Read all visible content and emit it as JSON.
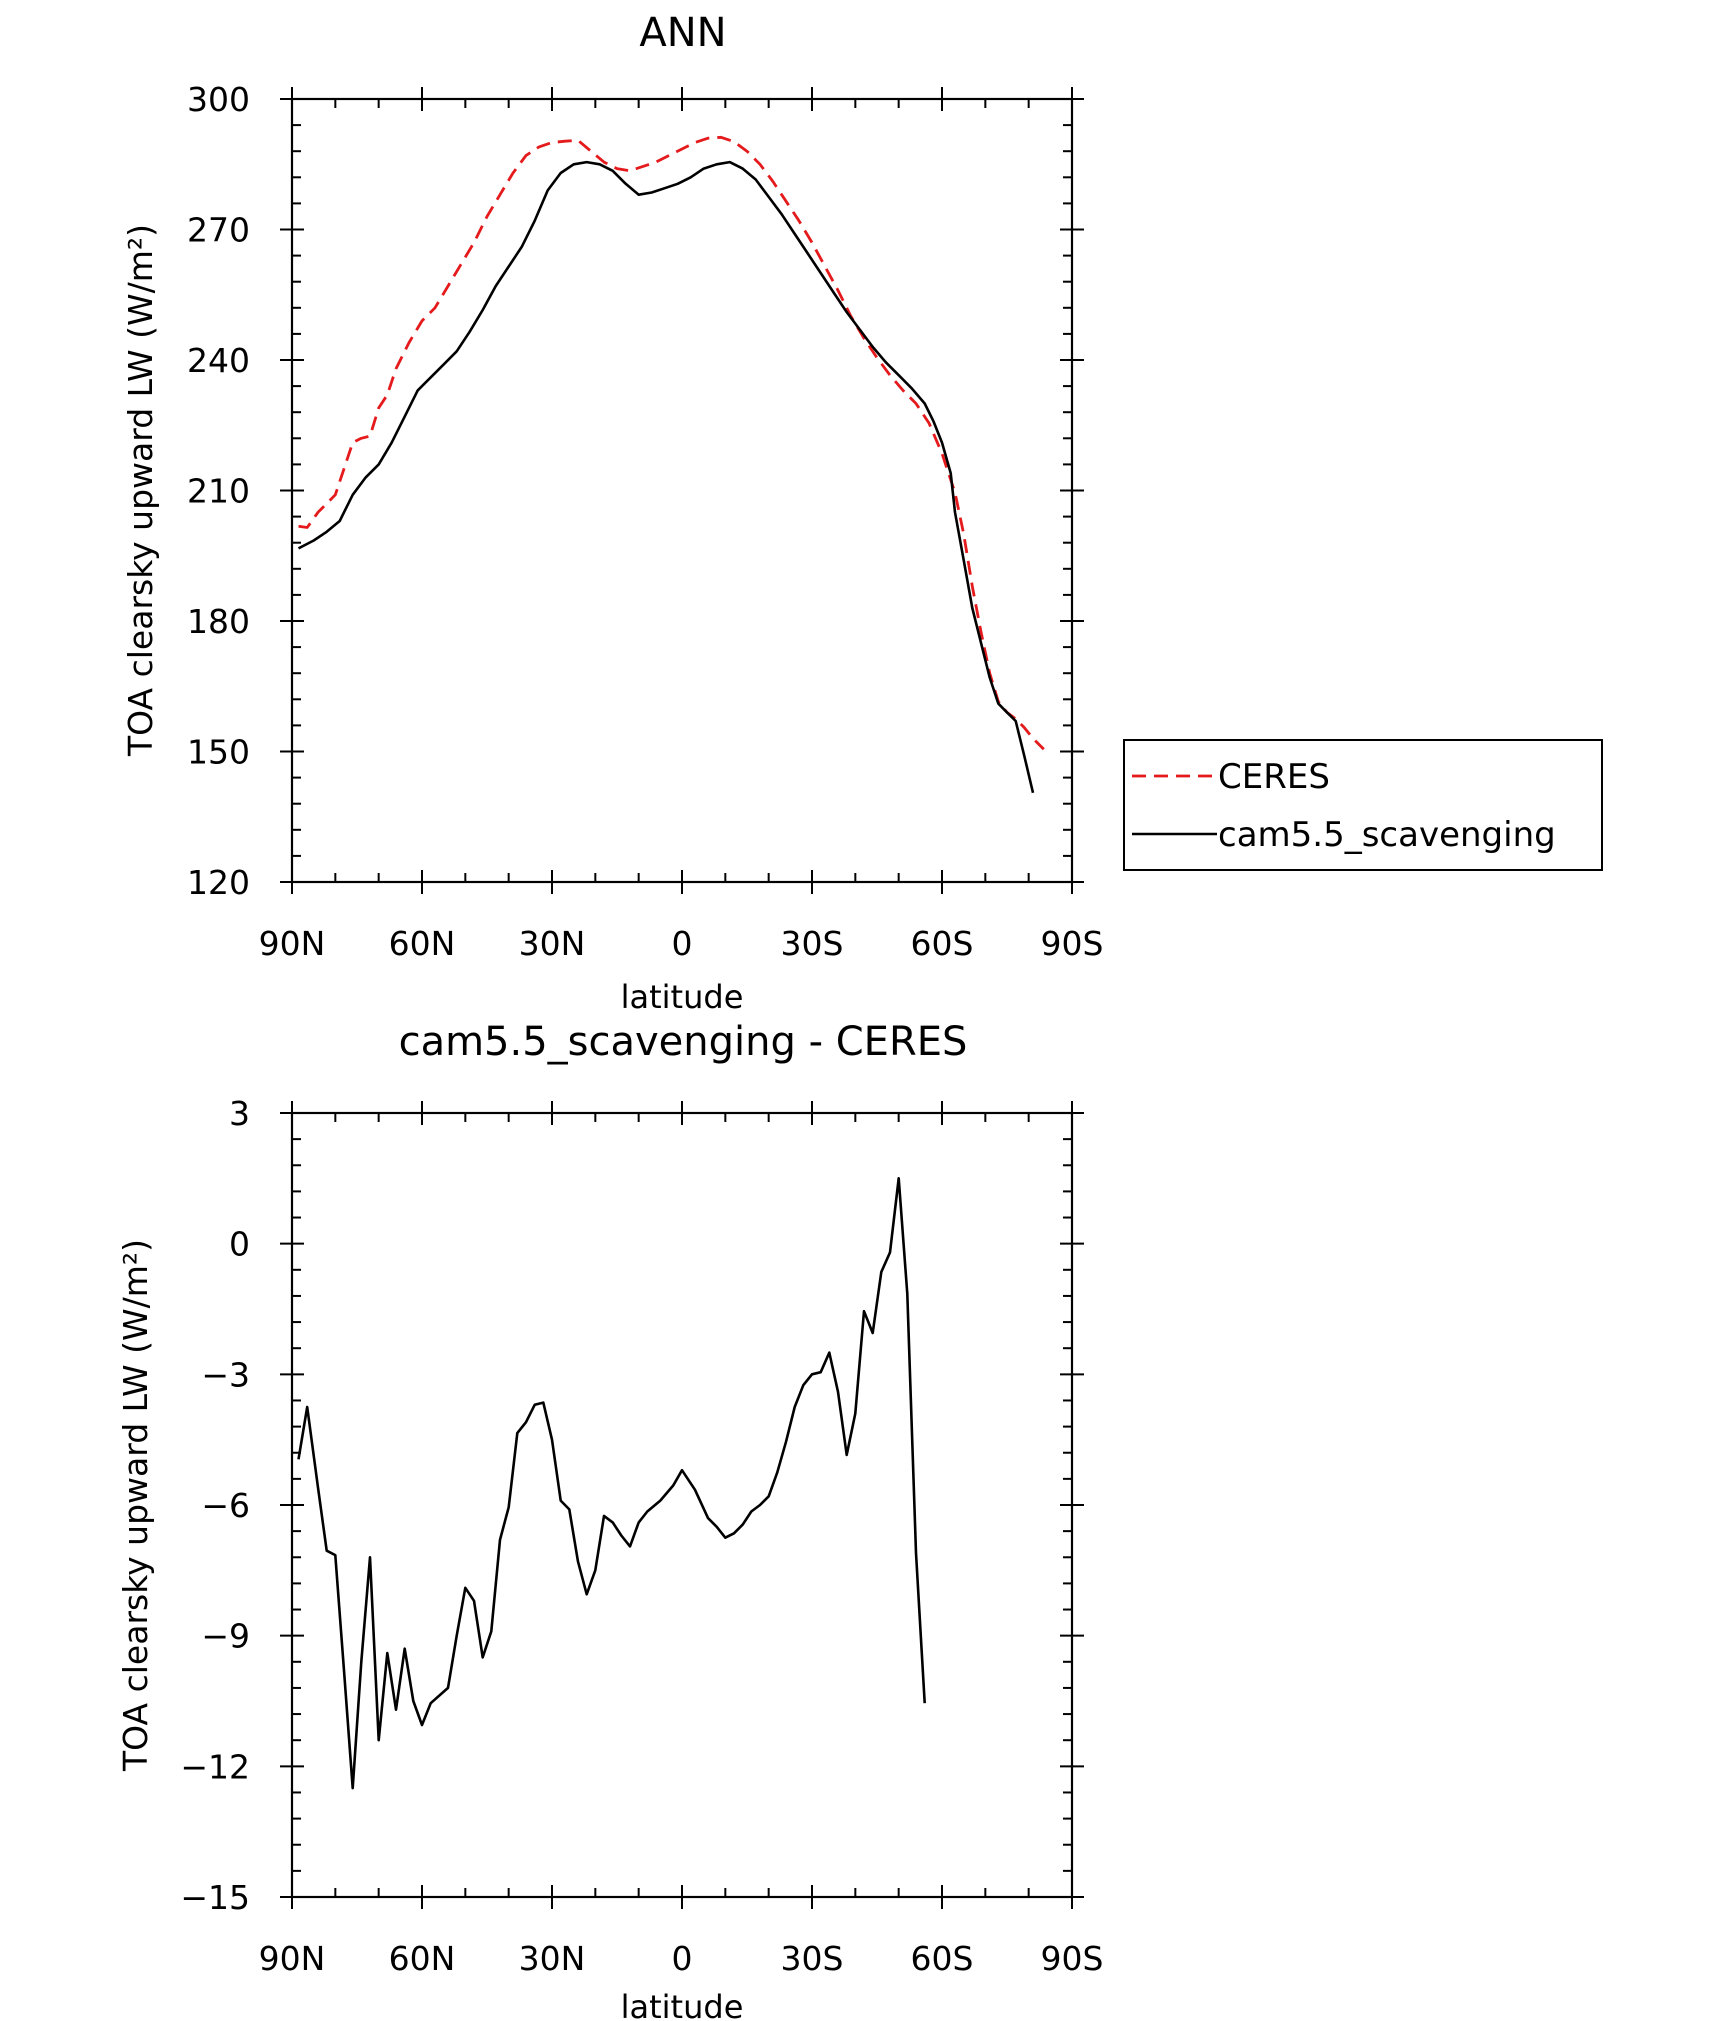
{
  "chart_data": [
    {
      "type": "line",
      "title": "ANN",
      "xlabel": "latitude",
      "ylabel": "TOA clearsky upward LW (W/m²)",
      "xlim": [
        90,
        -90
      ],
      "ylim": [
        120,
        300
      ],
      "xticks": [
        90,
        60,
        30,
        0,
        -30,
        -60,
        -90
      ],
      "xtick_labels": [
        "90N",
        "60N",
        "30N",
        "0",
        "30S",
        "60S",
        "90S"
      ],
      "yticks": [
        120,
        150,
        180,
        210,
        240,
        270,
        300
      ],
      "ytick_labels": [
        "120",
        "150",
        "180",
        "210",
        "240",
        "270",
        "300"
      ],
      "legend_position": "right",
      "series": [
        {
          "name": "CERES",
          "color": "#e41a1c",
          "dash": true,
          "points": [
            [
              88.5,
              201.8
            ],
            [
              86.5,
              201.5
            ],
            [
              84,
              205
            ],
            [
              82,
              207
            ],
            [
              80,
              209
            ],
            [
              78,
              215
            ],
            [
              76,
              221
            ],
            [
              74,
              222
            ],
            [
              72,
              222.5
            ],
            [
              70,
              229
            ],
            [
              68,
              232
            ],
            [
              66,
              238
            ],
            [
              63,
              244
            ],
            [
              60,
              249
            ],
            [
              57,
              252
            ],
            [
              54,
              257
            ],
            [
              51,
              262
            ],
            [
              48,
              267
            ],
            [
              45,
              273
            ],
            [
              42,
              278
            ],
            [
              39,
              283
            ],
            [
              36,
              287
            ],
            [
              33,
              289
            ],
            [
              30,
              290
            ],
            [
              27,
              290.3
            ],
            [
              24,
              290.5
            ],
            [
              21,
              288
            ],
            [
              18,
              285.5
            ],
            [
              15,
              284
            ],
            [
              12,
              283.5
            ],
            [
              9,
              284.5
            ],
            [
              6,
              285.5
            ],
            [
              3,
              287
            ],
            [
              0,
              288.5
            ],
            [
              -3,
              290
            ],
            [
              -6,
              291
            ],
            [
              -9,
              291.2
            ],
            [
              -12,
              290.2
            ],
            [
              -15,
              288
            ],
            [
              -18,
              285
            ],
            [
              -21,
              281
            ],
            [
              -24,
              276.5
            ],
            [
              -27,
              272
            ],
            [
              -30,
              267
            ],
            [
              -33,
              261.5
            ],
            [
              -36,
              256
            ],
            [
              -39,
              250
            ],
            [
              -42,
              245
            ],
            [
              -45,
              240.5
            ],
            [
              -48,
              236.5
            ],
            [
              -51,
              233
            ],
            [
              -54,
              230
            ],
            [
              -57,
              225.5
            ],
            [
              -60,
              218.5
            ],
            [
              -63,
              209.5
            ],
            [
              -65,
              200
            ],
            [
              -67,
              188
            ],
            [
              -69,
              177.5
            ],
            [
              -71,
              168
            ],
            [
              -73,
              161.5
            ],
            [
              -75,
              159
            ],
            [
              -77,
              157.5
            ],
            [
              -79,
              155.5
            ],
            [
              -81,
              153
            ],
            [
              -83.5,
              150.5
            ]
          ]
        },
        {
          "name": "cam5.5_scavenging",
          "color": "#000000",
          "dash": false,
          "points": [
            [
              88.5,
              196.7
            ],
            [
              85,
              198.5
            ],
            [
              82,
              200.5
            ],
            [
              79,
              203
            ],
            [
              76,
              209
            ],
            [
              73,
              213
            ],
            [
              70,
              216
            ],
            [
              67,
              221
            ],
            [
              64,
              227
            ],
            [
              61,
              233
            ],
            [
              58,
              236
            ],
            [
              55,
              239
            ],
            [
              52,
              242
            ],
            [
              49,
              246.5
            ],
            [
              46,
              251.5
            ],
            [
              43,
              257
            ],
            [
              40,
              261.5
            ],
            [
              37,
              266
            ],
            [
              34,
              272
            ],
            [
              31,
              279
            ],
            [
              28,
              283
            ],
            [
              25,
              285
            ],
            [
              22,
              285.5
            ],
            [
              19,
              285
            ],
            [
              16,
              283.5
            ],
            [
              13,
              280.5
            ],
            [
              10,
              278
            ],
            [
              7,
              278.5
            ],
            [
              4,
              279.5
            ],
            [
              1,
              280.5
            ],
            [
              -2,
              282
            ],
            [
              -5,
              284
            ],
            [
              -8,
              285
            ],
            [
              -11,
              285.5
            ],
            [
              -14,
              284
            ],
            [
              -17,
              281.5
            ],
            [
              -20,
              277.5
            ],
            [
              -23,
              273.5
            ],
            [
              -26,
              269
            ],
            [
              -29,
              264.5
            ],
            [
              -32,
              260
            ],
            [
              -35,
              255.5
            ],
            [
              -38,
              251
            ],
            [
              -41,
              247
            ],
            [
              -44,
              243
            ],
            [
              -47,
              239.5
            ],
            [
              -50,
              236.5
            ],
            [
              -53,
              233.5
            ],
            [
              -56,
              230
            ],
            [
              -58,
              226
            ],
            [
              -60,
              221
            ],
            [
              -62,
              214
            ],
            [
              -63,
              205
            ],
            [
              -65,
              194
            ],
            [
              -67,
              183
            ],
            [
              -69,
              175
            ],
            [
              -71,
              167
            ],
            [
              -73,
              161
            ],
            [
              -75,
              159
            ],
            [
              -77,
              157
            ],
            [
              -79,
              149
            ],
            [
              -81,
              140.5
            ]
          ]
        }
      ]
    },
    {
      "type": "line",
      "title": "cam5.5_scavenging - CERES",
      "xlabel": "latitude",
      "ylabel": "TOA clearsky upward LW (W/m²)",
      "xlim": [
        90,
        -90
      ],
      "ylim": [
        -15,
        3
      ],
      "xticks": [
        90,
        60,
        30,
        0,
        -30,
        -60,
        -90
      ],
      "xtick_labels": [
        "90N",
        "60N",
        "30N",
        "0",
        "30S",
        "60S",
        "90S"
      ],
      "yticks": [
        -15,
        -12,
        -9,
        -6,
        -3,
        0,
        3
      ],
      "ytick_labels": [
        "−15",
        "−12",
        "−9",
        "−6",
        "−3",
        "0",
        "3"
      ],
      "series": [
        {
          "name": "",
          "color": "#000000",
          "dash": false,
          "points": [
            [
              88.5,
              -4.95
            ],
            [
              86.5,
              -3.75
            ],
            [
              84,
              -5.6
            ],
            [
              82,
              -7.05
            ],
            [
              80,
              -7.15
            ],
            [
              78,
              -9.8
            ],
            [
              76,
              -12.5
            ],
            [
              74,
              -9.6
            ],
            [
              72,
              -7.2
            ],
            [
              70,
              -11.4
            ],
            [
              68,
              -9.4
            ],
            [
              66,
              -10.7
            ],
            [
              64,
              -9.3
            ],
            [
              62,
              -10.5
            ],
            [
              60,
              -11.05
            ],
            [
              58,
              -10.55
            ],
            [
              54,
              -10.2
            ],
            [
              52,
              -9.0
            ],
            [
              50,
              -7.9
            ],
            [
              48,
              -8.2
            ],
            [
              46,
              -9.5
            ],
            [
              44,
              -8.9
            ],
            [
              42,
              -6.8
            ],
            [
              40,
              -6.05
            ],
            [
              38,
              -4.35
            ],
            [
              36,
              -4.1
            ],
            [
              34,
              -3.7
            ],
            [
              32,
              -3.65
            ],
            [
              30,
              -4.5
            ],
            [
              28,
              -5.9
            ],
            [
              26,
              -6.1
            ],
            [
              24,
              -7.3
            ],
            [
              22,
              -8.05
            ],
            [
              20,
              -7.5
            ],
            [
              18,
              -6.25
            ],
            [
              16,
              -6.4
            ],
            [
              14,
              -6.7
            ],
            [
              12,
              -6.95
            ],
            [
              10,
              -6.4
            ],
            [
              8,
              -6.15
            ],
            [
              5,
              -5.9
            ],
            [
              2,
              -5.55
            ],
            [
              0,
              -5.2
            ],
            [
              -3,
              -5.65
            ],
            [
              -6,
              -6.3
            ],
            [
              -8,
              -6.5
            ],
            [
              -10,
              -6.75
            ],
            [
              -12,
              -6.65
            ],
            [
              -14,
              -6.45
            ],
            [
              -16,
              -6.15
            ],
            [
              -18,
              -6.0
            ],
            [
              -20,
              -5.8
            ],
            [
              -22,
              -5.25
            ],
            [
              -24,
              -4.55
            ],
            [
              -26,
              -3.75
            ],
            [
              -28,
              -3.25
            ],
            [
              -30,
              -3.0
            ],
            [
              -32,
              -2.95
            ],
            [
              -34,
              -2.5
            ],
            [
              -36,
              -3.4
            ],
            [
              -38,
              -4.85
            ],
            [
              -40,
              -3.9
            ],
            [
              -42,
              -1.55
            ],
            [
              -44,
              -2.05
            ],
            [
              -46,
              -0.65
            ],
            [
              -48,
              -0.2
            ],
            [
              -50,
              1.5
            ],
            [
              -52,
              -1.15
            ],
            [
              -54,
              -7.1
            ],
            [
              -56,
              -10.55
            ]
          ]
        }
      ]
    }
  ]
}
